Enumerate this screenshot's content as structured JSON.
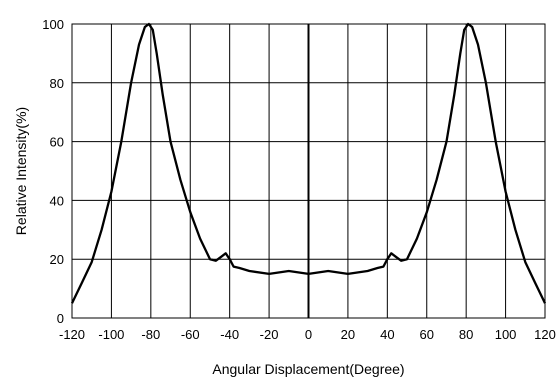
{
  "chart_data": {
    "type": "line",
    "xlabel": "Angular Displacement(Degree)",
    "ylabel": "Relative Intensity(%)",
    "xlim": [
      -120,
      120
    ],
    "ylim": [
      0,
      100
    ],
    "x_ticks": [
      -120,
      -100,
      -80,
      -60,
      -40,
      -20,
      0,
      20,
      40,
      60,
      80,
      100,
      120
    ],
    "y_ticks": [
      0,
      20,
      40,
      60,
      80,
      100
    ],
    "grid": true,
    "line_color": "#000000",
    "series": [
      {
        "x": [
          -120,
          -115,
          -110,
          -105,
          -100,
          -95,
          -90,
          -86,
          -83,
          -81,
          -79,
          -77,
          -74,
          -70,
          -65,
          -60,
          -55,
          -50,
          -47,
          -44,
          -42,
          -40,
          -38,
          -35,
          -30,
          -20,
          -10,
          0,
          10,
          20,
          30,
          35,
          38,
          40,
          42,
          44,
          47,
          50,
          55,
          60,
          65,
          70,
          74,
          77,
          79,
          81,
          83,
          86,
          90,
          95,
          100,
          105,
          110,
          115,
          120
        ],
        "values": [
          5,
          12,
          19,
          30,
          43,
          60,
          80,
          93,
          99,
          100,
          98,
          90,
          76,
          60,
          47,
          36,
          27,
          20,
          19.5,
          21,
          22,
          20,
          17.5,
          17,
          16,
          15,
          16,
          15,
          16,
          15,
          16,
          17,
          17.5,
          20,
          22,
          21,
          19.5,
          20,
          27,
          36,
          47,
          60,
          76,
          90,
          98,
          100,
          99,
          93,
          80,
          60,
          43,
          30,
          19,
          12,
          5
        ]
      }
    ]
  }
}
